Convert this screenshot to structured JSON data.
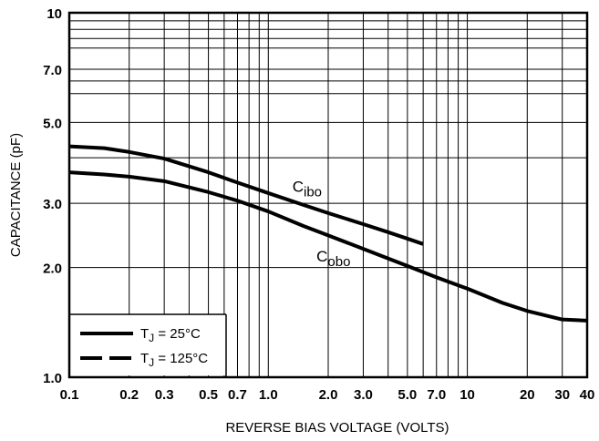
{
  "chart_data": {
    "type": "line",
    "title": "",
    "xlabel": "REVERSE BIAS VOLTAGE (VOLTS)",
    "ylabel": "CAPACITANCE (pF)",
    "x_scale": "log",
    "y_scale": "log",
    "xlim": [
      0.1,
      40
    ],
    "ylim": [
      1.0,
      10
    ],
    "grid": true,
    "x_ticks": [
      {
        "value": 0.1,
        "label": "0.1"
      },
      {
        "value": 0.2,
        "label": "0.2"
      },
      {
        "value": 0.3,
        "label": "0.3"
      },
      {
        "value": 0.5,
        "label": "0.5"
      },
      {
        "value": 0.7,
        "label": "0.7"
      },
      {
        "value": 1.0,
        "label": "1.0"
      },
      {
        "value": 2.0,
        "label": "2.0"
      },
      {
        "value": 3.0,
        "label": "3.0"
      },
      {
        "value": 5.0,
        "label": "5.0"
      },
      {
        "value": 7.0,
        "label": "7.0"
      },
      {
        "value": 10,
        "label": "10"
      },
      {
        "value": 20,
        "label": "20"
      },
      {
        "value": 30,
        "label": "30"
      },
      {
        "value": 40,
        "label": "40"
      }
    ],
    "y_ticks": [
      {
        "value": 1.0,
        "label": "1.0"
      },
      {
        "value": 2.0,
        "label": "2.0"
      },
      {
        "value": 3.0,
        "label": "3.0"
      },
      {
        "value": 5.0,
        "label": "5.0"
      },
      {
        "value": 7.0,
        "label": "7.0"
      },
      {
        "value": 10,
        "label": "10"
      }
    ],
    "x_grid_lines": [
      0.1,
      0.2,
      0.3,
      0.4,
      0.5,
      0.6,
      0.7,
      0.8,
      0.9,
      1,
      2,
      3,
      4,
      5,
      6,
      7,
      8,
      9,
      10,
      20,
      30,
      40
    ],
    "y_grid_lines": [
      1,
      2,
      3,
      4,
      5,
      6,
      7,
      8,
      9,
      10
    ],
    "series": [
      {
        "label_main": "C",
        "label_sub": "ibo",
        "x": [
          0.1,
          0.15,
          0.2,
          0.3,
          0.5,
          0.7,
          1.0,
          1.5,
          2.0,
          3.0,
          4.0,
          5.0,
          6.0
        ],
        "values": [
          4.3,
          4.25,
          4.15,
          3.98,
          3.65,
          3.42,
          3.2,
          2.97,
          2.82,
          2.63,
          2.5,
          2.4,
          2.32
        ]
      },
      {
        "label_main": "C",
        "label_sub": "obo",
        "x": [
          0.1,
          0.15,
          0.2,
          0.3,
          0.5,
          0.7,
          1.0,
          1.5,
          2.0,
          3.0,
          5.0,
          7.0,
          10,
          15,
          20,
          30,
          40
        ],
        "values": [
          3.65,
          3.6,
          3.55,
          3.45,
          3.22,
          3.05,
          2.85,
          2.6,
          2.45,
          2.25,
          2.02,
          1.88,
          1.75,
          1.6,
          1.52,
          1.44,
          1.43
        ]
      }
    ],
    "legend": {
      "position": "bottom-left",
      "entries": [
        {
          "text_main": "T",
          "text_sub": "J",
          "text_rest": " = 25°C",
          "style": "solid"
        },
        {
          "text_main": "T",
          "text_sub": "J",
          "text_rest": " = 125°C",
          "style": "dashed"
        }
      ]
    }
  }
}
